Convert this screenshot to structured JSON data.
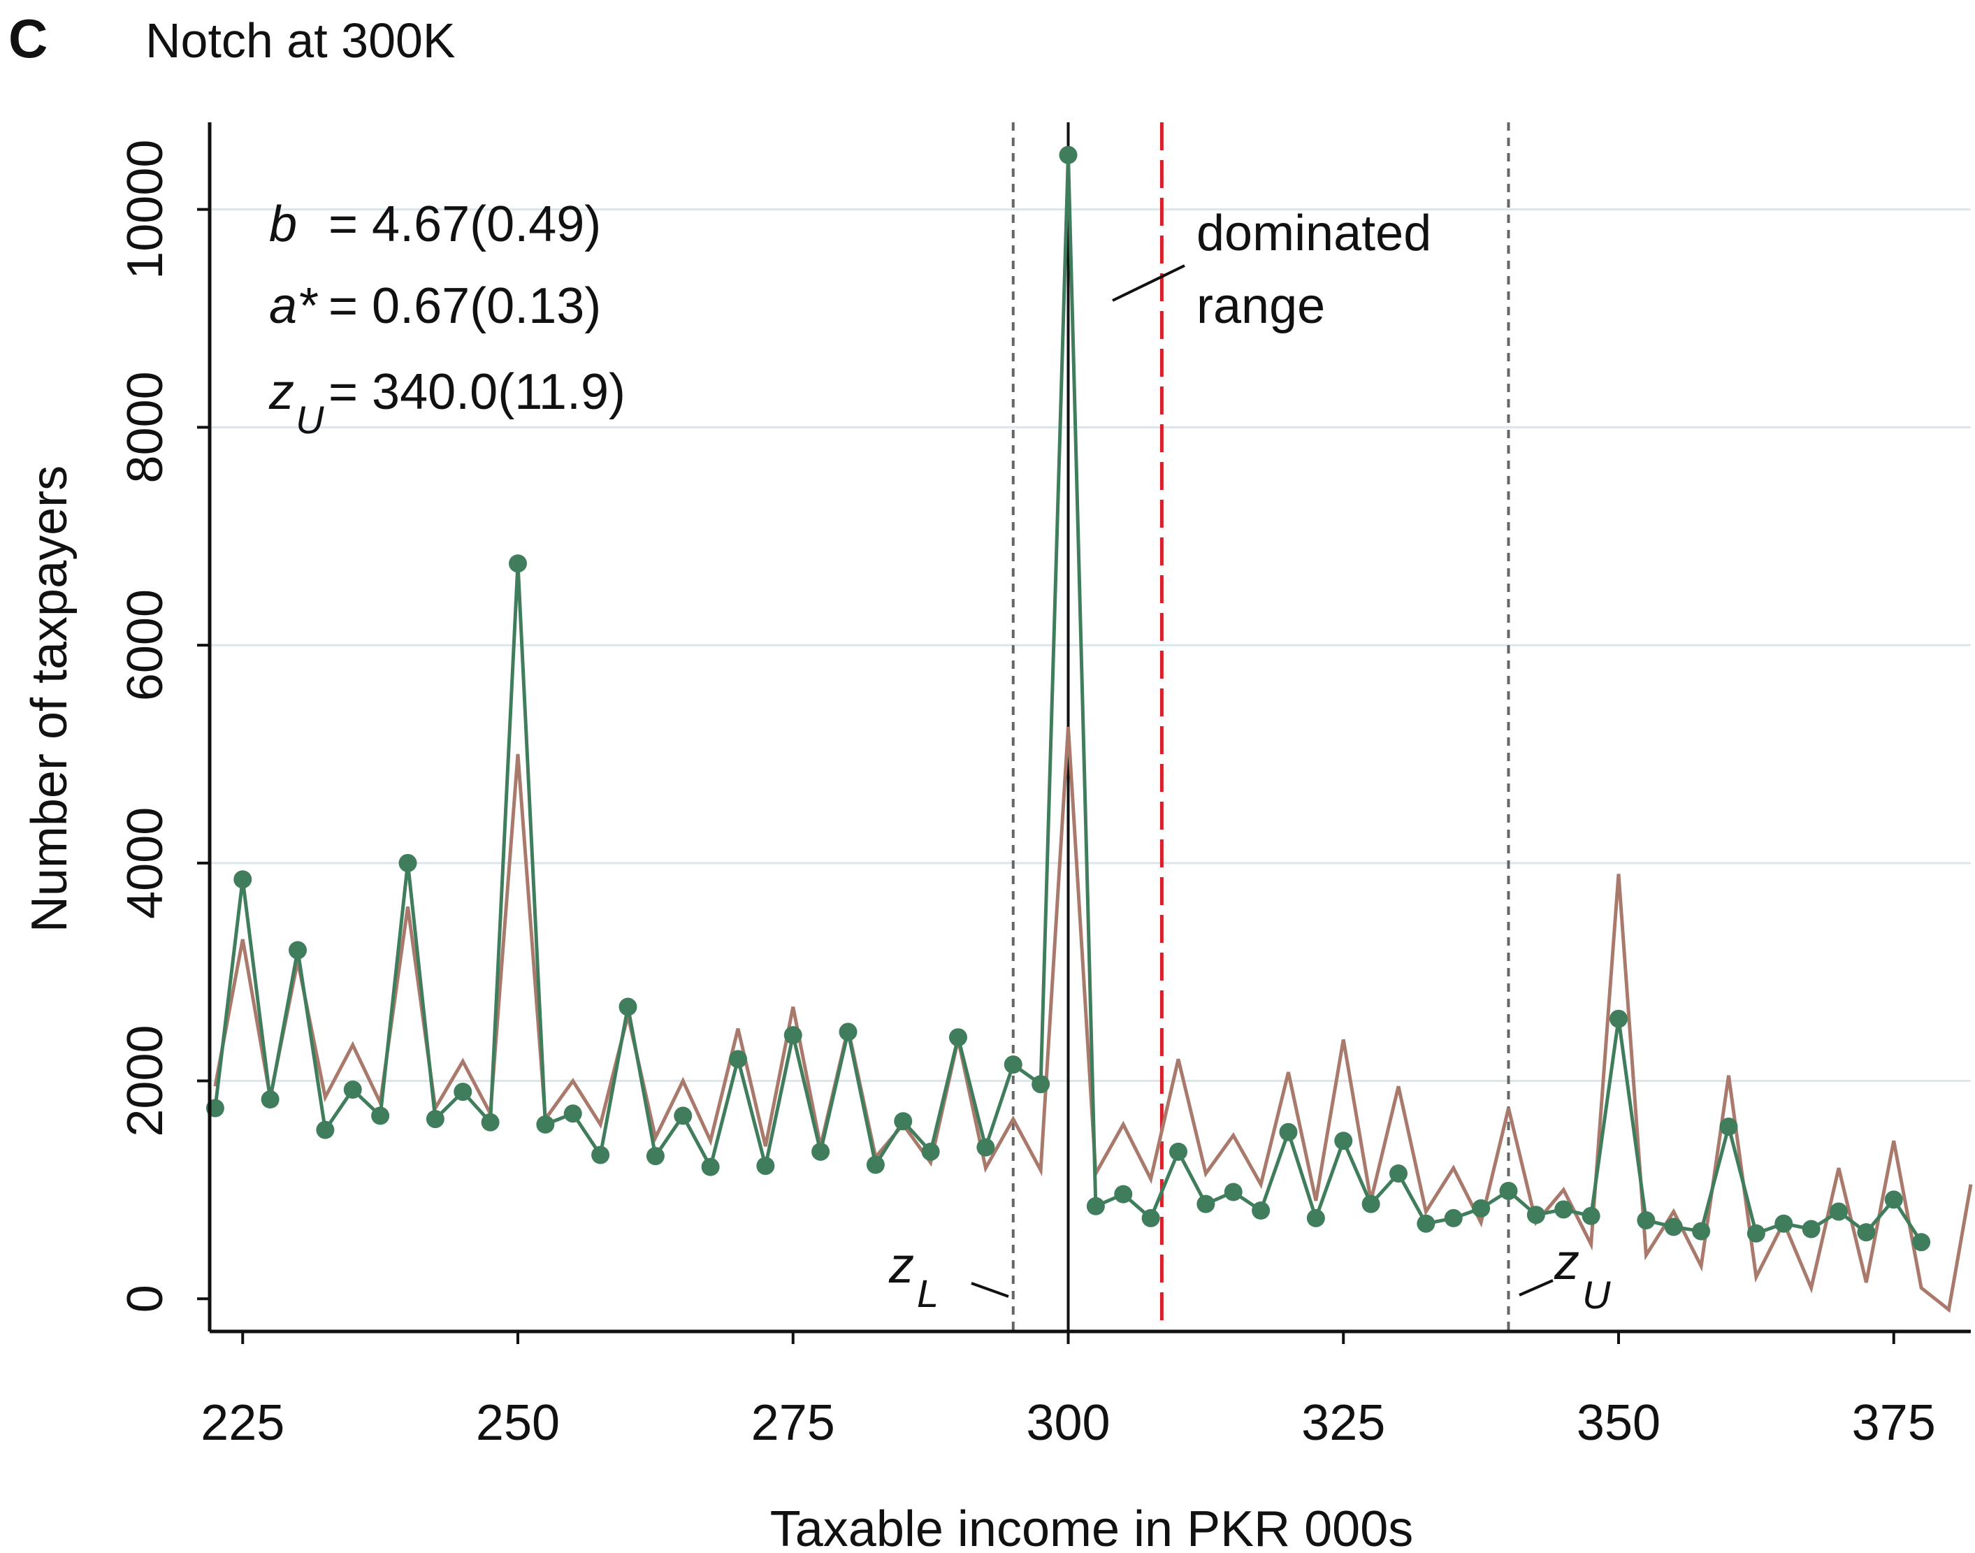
{
  "panel": {
    "letter": "C",
    "title": "Notch at 300K"
  },
  "chart_data": {
    "type": "line",
    "xlabel": "Taxable income in PKR 000s",
    "ylabel": "Number of taxpayers",
    "xlim": [
      222,
      382
    ],
    "ylim": [
      -300,
      10800
    ],
    "xticks": [
      225,
      250,
      275,
      300,
      325,
      350,
      375
    ],
    "yticks": [
      0,
      2000,
      4000,
      6000,
      8000,
      10000
    ],
    "ytick_labels": [
      "0",
      "2000",
      "4000",
      "6000",
      "8000",
      "10000"
    ],
    "xtick_labels": [
      "225",
      "250",
      "275",
      "300",
      "325",
      "350",
      "375"
    ],
    "grid": "horizontal",
    "colors": {
      "observed": "#3f7d5c",
      "counterfactual": "#a97a6c",
      "notch": "#111111",
      "dominated_range": "#d9202a",
      "bounds": "#666666",
      "grid": "#d9e6ec"
    },
    "series": [
      {
        "x": [
          222.5,
          225,
          227.5,
          230,
          232.5,
          235,
          237.5,
          240,
          242.5,
          245,
          247.5,
          250,
          252.5,
          255,
          257.5,
          260,
          262.5,
          265,
          267.5,
          270,
          272.5,
          275,
          277.5,
          280,
          282.5,
          285,
          287.5,
          290,
          292.5,
          295,
          297.5,
          300,
          302.5,
          305,
          307.5,
          310,
          312.5,
          315,
          317.5,
          320,
          322.5,
          325,
          327.5,
          330,
          332.5,
          335,
          337.5,
          340,
          342.5,
          345,
          347.5,
          350,
          352.5,
          355,
          357.5,
          360,
          362.5,
          365,
          367.5,
          370,
          372.5,
          375,
          377.5
        ],
        "values": [
          1750,
          3850,
          1830,
          3200,
          1550,
          1920,
          1680,
          4000,
          1650,
          1900,
          1620,
          6750,
          1600,
          1700,
          1320,
          2680,
          1310,
          1680,
          1210,
          2200,
          1220,
          2420,
          1350,
          2450,
          1230,
          1630,
          1350,
          2400,
          1390,
          2150,
          1970,
          10500,
          850,
          960,
          740,
          1350,
          870,
          980,
          810,
          1530,
          740,
          1450,
          870,
          1150,
          690,
          740,
          830,
          990,
          770,
          820,
          760,
          2570,
          720,
          660,
          620,
          1580,
          600,
          690,
          640,
          800,
          610,
          910,
          520
        ],
        "marker": "dot"
      },
      {
        "x": [
          222.5,
          225,
          227.5,
          230,
          232.5,
          235,
          237.5,
          240,
          242.5,
          245,
          247.5,
          250,
          252.5,
          255,
          257.5,
          260,
          262.5,
          265,
          267.5,
          270,
          272.5,
          275,
          277.5,
          280,
          282.5,
          285,
          287.5,
          290,
          292.5,
          295,
          297.5,
          300,
          302.5,
          305,
          307.5,
          310,
          312.5,
          315,
          317.5,
          320,
          322.5,
          325,
          327.5,
          330,
          332.5,
          335,
          337.5,
          340,
          342.5,
          345,
          347.5,
          350,
          352.5,
          355,
          357.5,
          360,
          362.5,
          365,
          367.5,
          370,
          372.5,
          375,
          377.5,
          380,
          382
        ],
        "values": [
          1950,
          3300,
          1850,
          3100,
          1850,
          2330,
          1800,
          3600,
          1750,
          2180,
          1700,
          5000,
          1650,
          2000,
          1600,
          2600,
          1480,
          2000,
          1450,
          2480,
          1400,
          2680,
          1400,
          2480,
          1300,
          1600,
          1250,
          2380,
          1200,
          1650,
          1180,
          5250,
          1150,
          1600,
          1100,
          2200,
          1150,
          1500,
          1050,
          2080,
          900,
          2380,
          900,
          1950,
          800,
          1200,
          700,
          1750,
          700,
          1000,
          500,
          3900,
          400,
          800,
          300,
          2050,
          200,
          700,
          100,
          1200,
          150,
          1450,
          100,
          -100,
          1050
        ]
      }
    ],
    "annotations": {
      "b": "b",
      "b_value": "= 4.67(0.49)",
      "a": "a*",
      "a_value": "= 0.67(0.13)",
      "zu_base": "z",
      "zu_sub": "U",
      "zu_value": "= 340.0(11.9)",
      "dominated_line1": "dominated",
      "dominated_line2": "range",
      "zl_label_base": "z",
      "zl_label_sub": "L",
      "zu_label_base": "z",
      "zu_label_sub": "U"
    },
    "reference_lines": {
      "notch": 300,
      "dominated_end": 308.5,
      "z_lower": 295,
      "z_upper": 340
    }
  }
}
